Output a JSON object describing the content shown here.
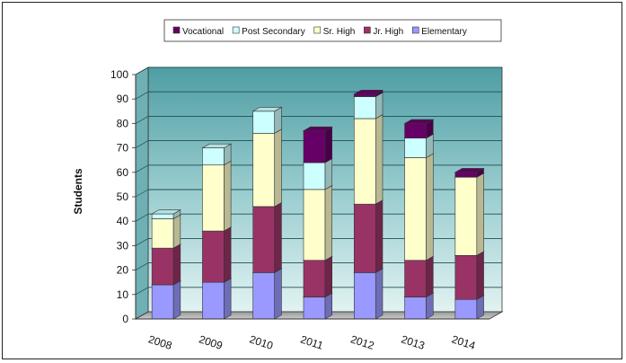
{
  "chart_data": {
    "type": "bar",
    "stacked": true,
    "three_d": true,
    "categories": [
      "2008",
      "2009",
      "2010",
      "2011",
      "2012",
      "2013",
      "2014"
    ],
    "series": [
      {
        "name": "Elementary",
        "color": "#9999ff",
        "values": [
          14,
          15,
          19,
          9,
          19,
          9,
          8
        ]
      },
      {
        "name": "Jr. High",
        "color": "#993366",
        "values": [
          15,
          21,
          27,
          15,
          28,
          15,
          18
        ]
      },
      {
        "name": "Sr. High",
        "color": "#ffffcc",
        "values": [
          12,
          27,
          30,
          29,
          35,
          42,
          32
        ]
      },
      {
        "name": "Post Secondary",
        "color": "#ccffff",
        "values": [
          2,
          7,
          9,
          11,
          9,
          8,
          0
        ]
      },
      {
        "name": "Vocational",
        "color": "#660066",
        "values": [
          0,
          0,
          0,
          13,
          1,
          6,
          2
        ]
      }
    ],
    "legend_order": [
      "Vocational",
      "Post Secondary",
      "Sr. High",
      "Jr. High",
      "Elementary"
    ],
    "ylabel": "Students",
    "xlabel": "",
    "title": "",
    "ylim": [
      0,
      100
    ],
    "yticks": [
      "0",
      "10",
      "20",
      "30",
      "40",
      "50",
      "60",
      "70",
      "80",
      "90",
      "100"
    ],
    "grid": true,
    "legend_position": "top",
    "wall_color": "#77b9bd"
  }
}
